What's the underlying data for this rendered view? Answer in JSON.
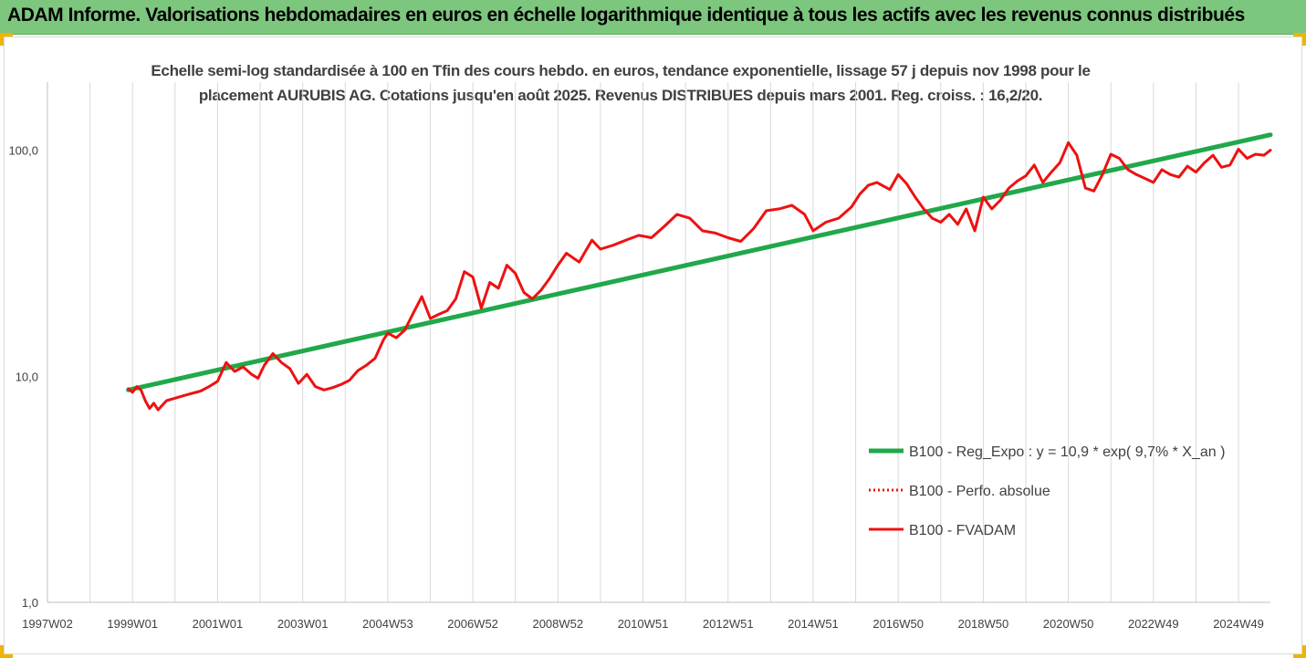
{
  "banner": {
    "title": "ADAM Informe. Valorisations hebdomadaires en euros en échelle logarithmique identique à tous les actifs avec les revenus connus distribués"
  },
  "colors": {
    "banner_bg": "#7dc67e",
    "corner_accent": "#f0b400",
    "trend_line": "#21a84a",
    "series_red": "#ee1111",
    "grid": "#d9d9d9",
    "text": "#404040"
  },
  "chart_data": {
    "type": "line",
    "title_lines": [
      "Echelle semi-log standardisée à 100 en Tfin des cours hebdo. en euros, tendance exponentielle, lissage 57 j depuis nov 1998 pour le",
      "placement AURUBIS AG. Cotations jusqu'en août 2025. Revenus DISTRIBUES depuis mars 2001. Reg. croiss. : 16,2/20."
    ],
    "y_scale": "log",
    "ylim": [
      1,
      200
    ],
    "y_ticks": [
      "1,0",
      "10,0",
      "100,0"
    ],
    "y_tick_values": [
      1,
      10,
      100
    ],
    "xlim": [
      1997.0,
      2025.75
    ],
    "x_ticks": [
      "1997W02",
      "1999W01",
      "2001W01",
      "2003W01",
      "2004W53",
      "2006W52",
      "2008W52",
      "2010W51",
      "2012W51",
      "2014W51",
      "2016W50",
      "2018W50",
      "2020W50",
      "2022W49",
      "2024W49"
    ],
    "x_tick_values": [
      1997.0,
      1999.0,
      2001.0,
      2003.0,
      2005.0,
      2007.0,
      2009.0,
      2011.0,
      2013.0,
      2015.0,
      2017.0,
      2019.0,
      2021.0,
      2023.0,
      2025.0
    ],
    "grid": "vertical",
    "legend_position": "bottom-right",
    "series": [
      {
        "name": "B100 - Reg_Expo : y = 10,9 * exp( 9,7% *  X_an )",
        "style": "solid-thick",
        "color": "#21a84a",
        "x": [
          1998.9,
          2025.75
        ],
        "y": [
          8.7,
          117
        ]
      },
      {
        "name": "B100 - Perfo. absolue",
        "style": "dotted",
        "color": "#ee1111",
        "x": [],
        "y": []
      },
      {
        "name": "B100 - FVADAM",
        "style": "solid",
        "color": "#ee1111",
        "x": [
          1998.9,
          1999.0,
          1999.1,
          1999.2,
          1999.3,
          1999.4,
          1999.5,
          1999.6,
          1999.8,
          2000.0,
          2000.2,
          2000.4,
          2000.6,
          2000.8,
          2001.0,
          2001.2,
          2001.4,
          2001.6,
          2001.8,
          2001.95,
          2002.1,
          2002.3,
          2002.5,
          2002.7,
          2002.9,
          2003.1,
          2003.3,
          2003.5,
          2003.7,
          2003.9,
          2004.1,
          2004.3,
          2004.5,
          2004.7,
          2004.9,
          2005.0,
          2005.2,
          2005.4,
          2005.6,
          2005.8,
          2006.0,
          2006.2,
          2006.4,
          2006.6,
          2006.8,
          2007.0,
          2007.2,
          2007.4,
          2007.6,
          2007.8,
          2008.0,
          2008.2,
          2008.4,
          2008.6,
          2008.8,
          2009.0,
          2009.2,
          2009.5,
          2009.8,
          2010.0,
          2010.3,
          2010.6,
          2010.9,
          2011.2,
          2011.5,
          2011.8,
          2012.1,
          2012.4,
          2012.7,
          2013.0,
          2013.3,
          2013.6,
          2013.9,
          2014.2,
          2014.5,
          2014.8,
          2015.0,
          2015.3,
          2015.6,
          2015.9,
          2016.1,
          2016.3,
          2016.5,
          2016.8,
          2017.0,
          2017.2,
          2017.4,
          2017.6,
          2017.8,
          2018.0,
          2018.2,
          2018.4,
          2018.6,
          2018.8,
          2019.0,
          2019.2,
          2019.4,
          2019.6,
          2019.8,
          2020.0,
          2020.2,
          2020.4,
          2020.6,
          2020.8,
          2021.0,
          2021.2,
          2021.4,
          2021.6,
          2021.8,
          2022.0,
          2022.2,
          2022.4,
          2022.6,
          2022.8,
          2023.0,
          2023.2,
          2023.4,
          2023.6,
          2023.8,
          2024.0,
          2024.2,
          2024.4,
          2024.6,
          2024.8,
          2025.0,
          2025.2,
          2025.4,
          2025.6,
          2025.75
        ],
        "y": [
          8.8,
          8.5,
          9.0,
          8.7,
          7.8,
          7.2,
          7.6,
          7.1,
          7.8,
          8.0,
          8.2,
          8.4,
          8.6,
          9.0,
          9.5,
          11.5,
          10.5,
          11.0,
          10.2,
          9.8,
          11.2,
          12.6,
          11.5,
          10.8,
          9.3,
          10.2,
          9.0,
          8.7,
          8.9,
          9.2,
          9.6,
          10.6,
          11.2,
          12.0,
          14.5,
          15.5,
          14.8,
          16.0,
          19.0,
          22.5,
          18.0,
          18.8,
          19.5,
          22.0,
          29.0,
          27.5,
          20.0,
          26.0,
          24.5,
          31.0,
          28.5,
          23.5,
          22.0,
          24.0,
          27.0,
          31.0,
          35.0,
          32.0,
          40.0,
          36.5,
          38.0,
          40.0,
          42.0,
          41.0,
          46.0,
          52.0,
          50.0,
          44.0,
          43.0,
          41.0,
          39.5,
          45.0,
          54.0,
          55.0,
          57.0,
          52.0,
          44.0,
          48.0,
          50.0,
          56.0,
          64.0,
          70.0,
          72.0,
          67.0,
          78.0,
          71.0,
          62.0,
          55.0,
          50.0,
          48.0,
          52.0,
          47.0,
          55.0,
          44.0,
          62.0,
          55.0,
          60.0,
          68.0,
          73.0,
          77.0,
          86.0,
          72.0,
          80.0,
          88.0,
          108.0,
          95.0,
          68.0,
          66.0,
          78.0,
          96.0,
          92.0,
          82.0,
          78.0,
          75.0,
          72.0,
          82.0,
          78.0,
          76.0,
          85.0,
          80.0,
          88.0,
          95.0,
          84.0,
          86.0,
          101.0,
          92.0,
          96.0,
          95.0,
          100.0
        ]
      }
    ]
  }
}
